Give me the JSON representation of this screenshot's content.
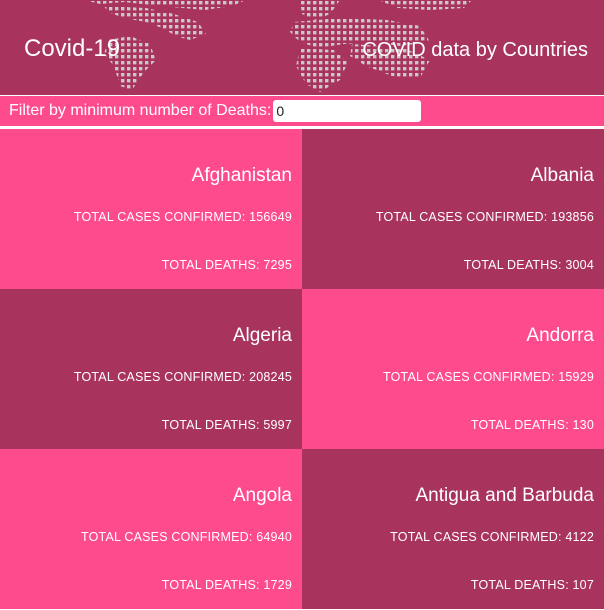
{
  "header": {
    "title": "Covid-19",
    "subtitle": "COVID data by Countries",
    "background_icon": "world-map-dots"
  },
  "filter": {
    "label": "Filter by minimum number of Deaths:",
    "value": "0"
  },
  "colors": {
    "dark": "#a8345e",
    "pink": "#fe4b8d"
  },
  "countries": [
    {
      "name": "Afghanistan",
      "cases_label": "TOTAL CASES CONFIRMED: 156649",
      "deaths_label": "TOTAL DEATHS: 7295"
    },
    {
      "name": "Albania",
      "cases_label": "TOTAL CASES CONFIRMED: 193856",
      "deaths_label": "TOTAL DEATHS: 3004"
    },
    {
      "name": "Algeria",
      "cases_label": "TOTAL CASES CONFIRMED: 208245",
      "deaths_label": "TOTAL DEATHS: 5997"
    },
    {
      "name": "Andorra",
      "cases_label": "TOTAL CASES CONFIRMED: 15929",
      "deaths_label": "TOTAL DEATHS: 130"
    },
    {
      "name": "Angola",
      "cases_label": "TOTAL CASES CONFIRMED: 64940",
      "deaths_label": "TOTAL DEATHS: 1729"
    },
    {
      "name": "Antigua and Barbuda",
      "cases_label": "TOTAL CASES CONFIRMED: 4122",
      "deaths_label": "TOTAL DEATHS: 107"
    }
  ]
}
